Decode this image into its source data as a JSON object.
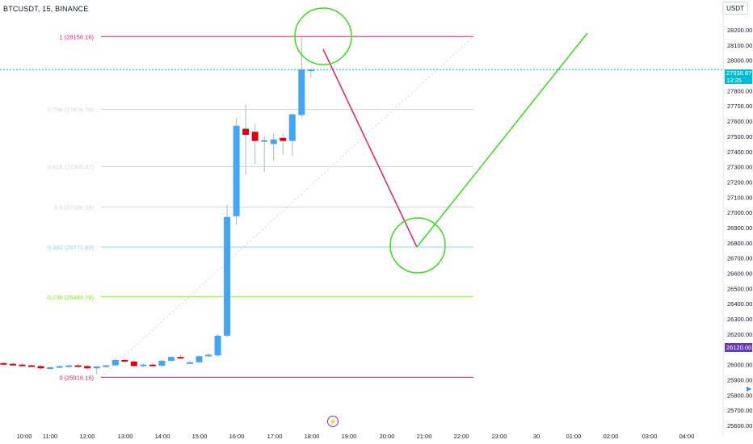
{
  "symbol": "BTCUSDT, 15, BINANCE",
  "currency_button": "USDT",
  "current_price": "27938.87",
  "countdown": "13:35",
  "marker_price": "26120.00",
  "fib_levels": [
    {
      "label": "1 (28156.16)",
      "value": 28156.16,
      "color": "#e91e63"
    },
    {
      "label": "0.786 (27676.79)",
      "value": 27676.79,
      "color": "#d1d4dc"
    },
    {
      "label": "0.618 (27300.47)",
      "value": 27300.47,
      "color": "#d1d4dc"
    },
    {
      "label": "0.5 (27036.15)",
      "value": 27036.15,
      "color": "#d1d4dc"
    },
    {
      "label": "0.382 (26771.83)",
      "value": 26771.83,
      "color": "#80deea"
    },
    {
      "label": "0.236 (26444.79)",
      "value": 26444.79,
      "color": "#76ff03"
    },
    {
      "label": "0 (25916.15)",
      "value": 25916.15,
      "color": "#e91e63"
    }
  ],
  "price_axis": [
    "28200.00",
    "28100.00",
    "28000.00",
    "27900.00",
    "27800.00",
    "27700.00",
    "27600.00",
    "27500.00",
    "27400.00",
    "27300.00",
    "27200.00",
    "27100.00",
    "27000.00",
    "26900.00",
    "26800.00",
    "26700.00",
    "26600.00",
    "26500.00",
    "26400.00",
    "26300.00",
    "26200.00",
    "26100.00",
    "26000.00",
    "25900.00",
    "25800.00",
    "25700.00",
    "25600.00"
  ],
  "time_axis": [
    "10:00",
    "11:00",
    "12:00",
    "13:00",
    "14:00",
    "15:00",
    "16:00",
    "17:00",
    "18:00",
    "19:00",
    "20:00",
    "21:00",
    "22:00",
    "23:00",
    "30",
    "01:00",
    "02:00",
    "03:00",
    "04:00"
  ],
  "chart_data": {
    "type": "candlestick",
    "candles": [
      {
        "t": "09:45",
        "o": 26010,
        "h": 26015,
        "l": 26000,
        "c": 26005
      },
      {
        "t": "10:00",
        "o": 26005,
        "h": 26012,
        "l": 25998,
        "c": 26000
      },
      {
        "t": "10:15",
        "o": 26000,
        "h": 26008,
        "l": 25990,
        "c": 25995
      },
      {
        "t": "10:30",
        "o": 25995,
        "h": 26002,
        "l": 25985,
        "c": 25990
      },
      {
        "t": "10:45",
        "o": 25990,
        "h": 25998,
        "l": 25968,
        "c": 25975
      },
      {
        "t": "11:00",
        "o": 25975,
        "h": 25988,
        "l": 25965,
        "c": 25982
      },
      {
        "t": "11:15",
        "o": 25982,
        "h": 25995,
        "l": 25975,
        "c": 25990
      },
      {
        "t": "11:30",
        "o": 25990,
        "h": 26000,
        "l": 25980,
        "c": 25995
      },
      {
        "t": "11:45",
        "o": 25995,
        "h": 26005,
        "l": 25985,
        "c": 25990
      },
      {
        "t": "12:00",
        "o": 25990,
        "h": 25998,
        "l": 25965,
        "c": 25975
      },
      {
        "t": "12:15",
        "o": 25975,
        "h": 25990,
        "l": 25935,
        "c": 25988
      },
      {
        "t": "12:30",
        "o": 25988,
        "h": 26000,
        "l": 25980,
        "c": 25995
      },
      {
        "t": "12:45",
        "o": 25995,
        "h": 26040,
        "l": 25990,
        "c": 26030
      },
      {
        "t": "13:00",
        "o": 26030,
        "h": 26045,
        "l": 26010,
        "c": 26020
      },
      {
        "t": "13:15",
        "o": 26020,
        "h": 26028,
        "l": 25985,
        "c": 25990
      },
      {
        "t": "13:30",
        "o": 25990,
        "h": 26008,
        "l": 25985,
        "c": 26000
      },
      {
        "t": "13:45",
        "o": 26000,
        "h": 26010,
        "l": 25988,
        "c": 25992
      },
      {
        "t": "14:00",
        "o": 25992,
        "h": 26030,
        "l": 25990,
        "c": 26025
      },
      {
        "t": "14:15",
        "o": 26025,
        "h": 26055,
        "l": 26020,
        "c": 26050
      },
      {
        "t": "14:30",
        "o": 26050,
        "h": 26062,
        "l": 26040,
        "c": 26045
      },
      {
        "t": "14:45",
        "o": 26012,
        "h": 26025,
        "l": 26005,
        "c": 26015
      },
      {
        "t": "15:00",
        "o": 26015,
        "h": 26060,
        "l": 26010,
        "c": 26055
      },
      {
        "t": "15:15",
        "o": 26055,
        "h": 26075,
        "l": 26045,
        "c": 26065
      },
      {
        "t": "15:30",
        "o": 26060,
        "h": 26200,
        "l": 26055,
        "c": 26190
      },
      {
        "t": "15:45",
        "o": 26190,
        "h": 27050,
        "l": 26180,
        "c": 26970
      },
      {
        "t": "16:00",
        "o": 26975,
        "h": 27620,
        "l": 26920,
        "c": 27570
      },
      {
        "t": "16:15",
        "o": 27550,
        "h": 27710,
        "l": 27250,
        "c": 27510
      },
      {
        "t": "16:30",
        "o": 27530,
        "h": 27580,
        "l": 27320,
        "c": 27470
      },
      {
        "t": "16:45",
        "o": 27470,
        "h": 27500,
        "l": 27265,
        "c": 27475
      },
      {
        "t": "17:00",
        "o": 27450,
        "h": 27520,
        "l": 27340,
        "c": 27480
      },
      {
        "t": "17:15",
        "o": 27490,
        "h": 27520,
        "l": 27380,
        "c": 27470
      },
      {
        "t": "17:30",
        "o": 27470,
        "h": 27650,
        "l": 27370,
        "c": 27645
      },
      {
        "t": "17:45",
        "o": 27640,
        "h": 28150,
        "l": 27620,
        "c": 27940
      },
      {
        "t": "18:00",
        "o": 27938,
        "h": 27945,
        "l": 27885,
        "c": 27939
      }
    ],
    "annotations": [
      "fib retracement 0–1",
      "green circles marking swing high and 0.382 target",
      "magenta projection line to 0.382",
      "green projection line upward"
    ]
  }
}
